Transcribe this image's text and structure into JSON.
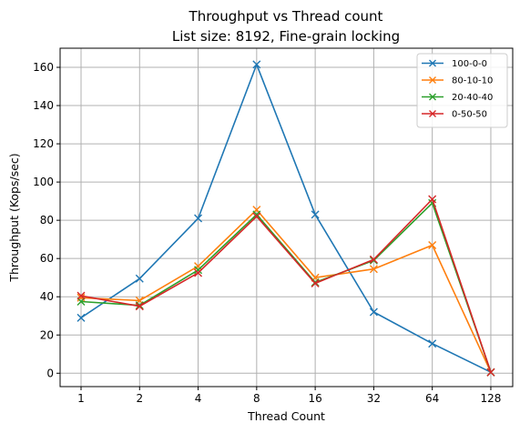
{
  "chart_data": {
    "type": "line",
    "title": "Throughput vs Thread count",
    "subtitle": "List size: 8192, Fine-grain locking",
    "xlabel": "Thread Count",
    "ylabel": "Throughput (Kops/sec)",
    "categories": [
      "1",
      "2",
      "4",
      "8",
      "16",
      "32",
      "64",
      "128"
    ],
    "ylim": [
      -7,
      170
    ],
    "yticks": [
      0,
      20,
      40,
      60,
      80,
      100,
      120,
      140,
      160
    ],
    "grid": true,
    "legend_position": "top-right",
    "marker": "x",
    "series": [
      {
        "name": "100-0-0",
        "color": "#1f77b4",
        "values": [
          29,
          49.5,
          81,
          161.5,
          83,
          32,
          15.5,
          0.5
        ]
      },
      {
        "name": "80-10-10",
        "color": "#ff7f0e",
        "values": [
          39.5,
          38,
          56,
          85.5,
          50,
          54.5,
          67,
          0.5
        ]
      },
      {
        "name": "20-40-40",
        "color": "#2ca02c",
        "values": [
          37.5,
          35.5,
          54,
          83,
          47.5,
          59,
          89,
          0.5
        ]
      },
      {
        "name": "0-50-50",
        "color": "#d62728",
        "values": [
          40.5,
          35,
          52.5,
          82,
          47,
          59.5,
          91,
          0.5
        ]
      }
    ]
  }
}
